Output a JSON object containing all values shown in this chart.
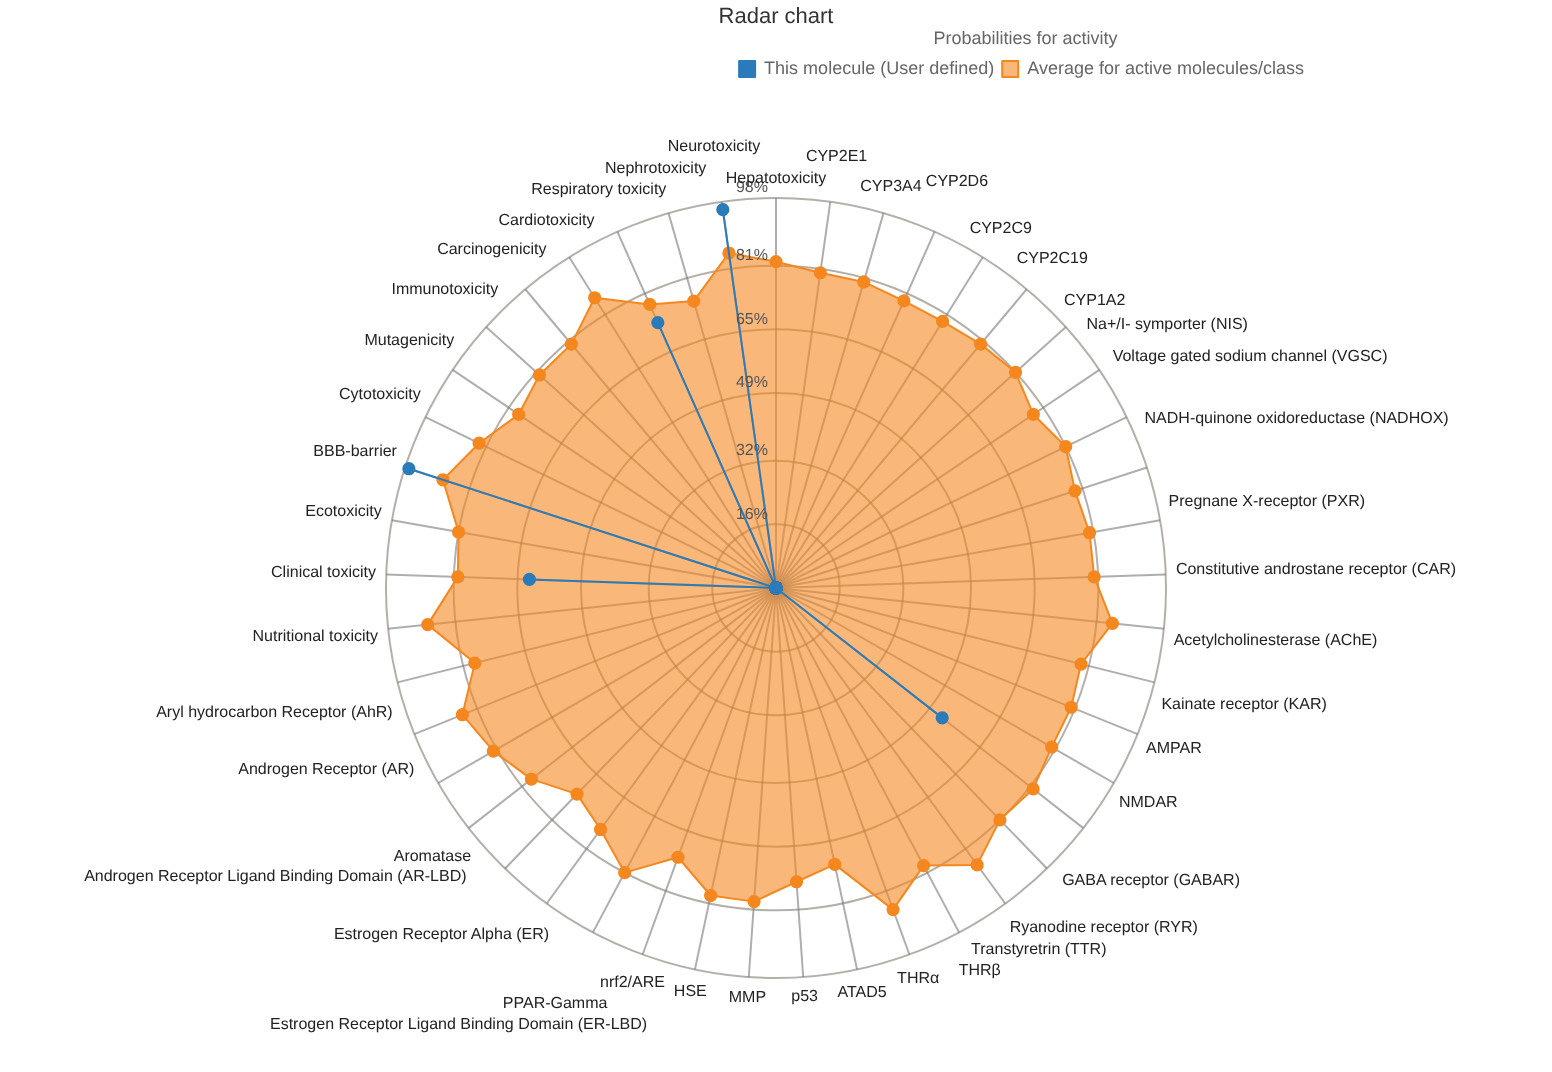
{
  "chart_data": {
    "type": "radar",
    "title": "Radar chart",
    "legend_title": "Probabilities for activity",
    "legend": "top right",
    "grid": true,
    "marker": "circle",
    "categories": [
      "Hepatotoxicity",
      "CYP2E1",
      "CYP3A4",
      "CYP2D6",
      "CYP2C9",
      "CYP2C19",
      "CYP1A2",
      "Na+/I- symporter (NIS)",
      "Voltage gated sodium channel (VGSC)",
      "NADH-quinone oxidoreductase (NADHOX)",
      "Pregnane X-receptor (PXR)",
      "Constitutive androstane receptor (CAR)",
      "Acetylcholinesterase (AChE)",
      "Kainate receptor (KAR)",
      "AMPAR",
      "NMDAR",
      "GABA receptor (GABAR)",
      "Ryanodine receptor (RYR)",
      "Transtyretrin (TTR)",
      "THRβ",
      "THRα",
      "ATAD5",
      "p53",
      "MMP",
      "HSE",
      "nrf2/ARE",
      "PPAR-Gamma",
      "Estrogen Receptor Ligand Binding Domain (ER-LBD)",
      "Estrogen Receptor Alpha (ER)",
      "Aromatase",
      "Androgen Receptor Ligand Binding Domain (AR-LBD)",
      "Androgen Receptor (AR)",
      "Aryl hydrocarbon Receptor (AhR)",
      "Nutritional toxicity",
      "Clinical toxicity",
      "Ecotoxicity",
      "BBB-barrier",
      "Cytotoxicity",
      "Mutagenicity",
      "Immunotoxicity",
      "Carcinogenicity",
      "Cardiotoxicity",
      "Respiratory toxicity",
      "Nephrotoxicity",
      "Neurotoxicity"
    ],
    "series": [
      {
        "name": "This molecule (User defined)",
        "color": "#2b7bba",
        "values": [
          0,
          0,
          0,
          0,
          0,
          0,
          0,
          0,
          0,
          0,
          0,
          0,
          0,
          0,
          0,
          0,
          53,
          0,
          0,
          0,
          0,
          0,
          0,
          0,
          0,
          0,
          0,
          0,
          0,
          0,
          0,
          0,
          0,
          0,
          62,
          0,
          97,
          0,
          0,
          0,
          0,
          0,
          73,
          0,
          96
        ]
      },
      {
        "name": "Average for active molecules/class",
        "color": "#f5871f",
        "values": [
          82,
          80,
          80,
          79,
          79,
          80,
          81,
          78,
          81,
          79,
          80,
          80,
          85,
          79,
          80,
          80,
          82,
          81,
          86,
          79,
          86,
          71,
          74,
          79,
          79,
          72,
          81,
          75,
          72,
          78,
          82,
          85,
          78,
          88,
          80,
          81,
          88,
          83,
          78,
          80,
          80,
          86,
          78,
          75,
          85
        ]
      }
    ],
    "ylim": [
      0,
      98
    ],
    "yticks": [
      {
        "value": 16,
        "label": "16%"
      },
      {
        "value": 32,
        "label": "32%"
      },
      {
        "value": 49,
        "label": "49%"
      },
      {
        "value": 65,
        "label": "65%"
      },
      {
        "value": 81,
        "label": "81%"
      },
      {
        "value": 98,
        "label": "98%"
      }
    ]
  }
}
